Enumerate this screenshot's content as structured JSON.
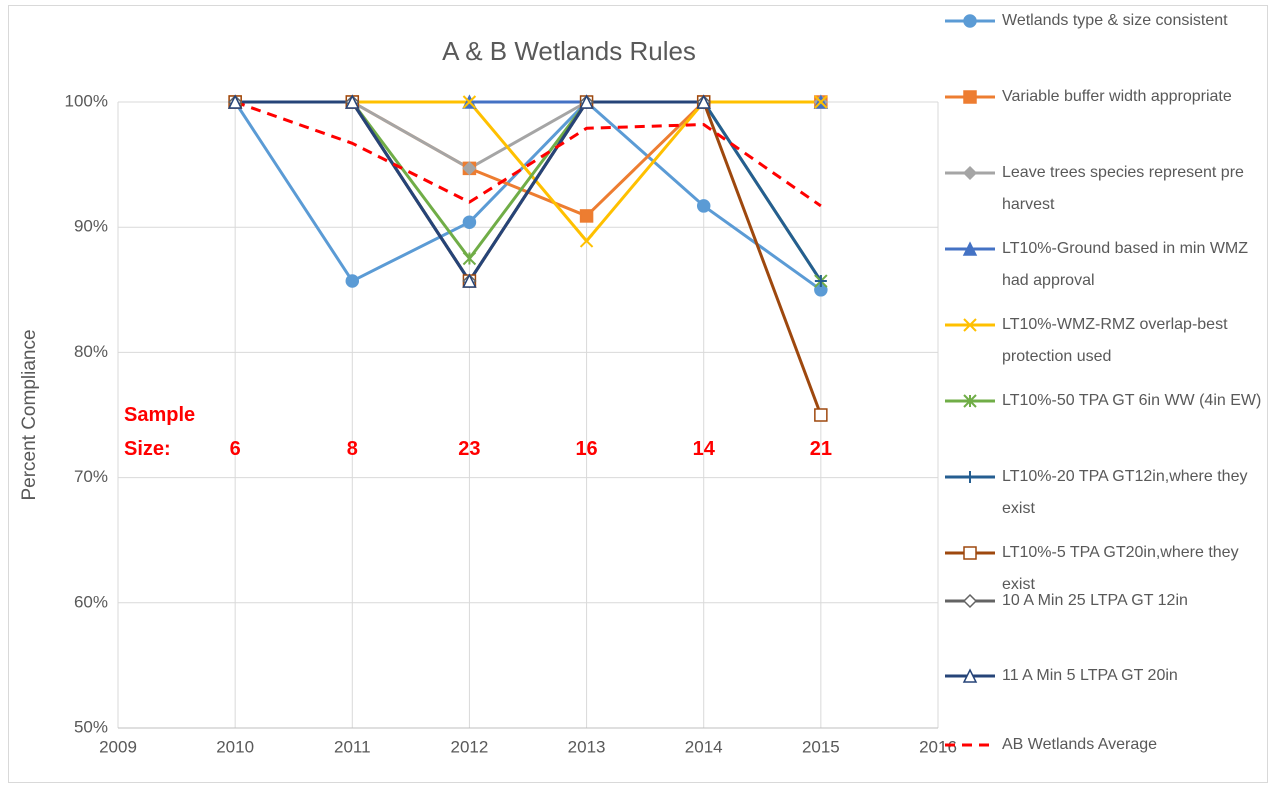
{
  "chart_data": {
    "type": "line",
    "title": "A & B Wetlands Rules",
    "y_label": "Percent Compliance",
    "x": [
      2010,
      2011,
      2012,
      2013,
      2014,
      2015
    ],
    "xlim": [
      2009,
      2016
    ],
    "xticks": [
      2009,
      2010,
      2011,
      2012,
      2013,
      2014,
      2015,
      2016
    ],
    "ylim": [
      50,
      100
    ],
    "yticks": [
      {
        "value": 50,
        "label": "50%"
      },
      {
        "value": 60,
        "label": "60%"
      },
      {
        "value": 70,
        "label": "70%"
      },
      {
        "value": 80,
        "label": "80%"
      },
      {
        "value": 90,
        "label": "90%"
      },
      {
        "value": 100,
        "label": "100%"
      }
    ],
    "grid": true,
    "legend": "right",
    "sample_size": {
      "label": "Sample Size:",
      "values": [
        6,
        8,
        23,
        16,
        14,
        21
      ],
      "color": "#ff0000"
    },
    "series": [
      {
        "name": "Wetlands type & size consistent",
        "color": "#5b9bd5",
        "marker": "circle",
        "values": [
          100,
          85.7,
          90.4,
          100,
          91.7,
          85
        ]
      },
      {
        "name": "Variable buffer width appropriate",
        "color": "#ed7d31",
        "marker": "square",
        "values": [
          100,
          100,
          94.7,
          90.9,
          100,
          100
        ]
      },
      {
        "name": "Leave trees species represent pre harvest",
        "color": "#a5a5a5",
        "marker": "diamond",
        "values": [
          100,
          100,
          94.7,
          100,
          100,
          100
        ]
      },
      {
        "name": "LT10%-Ground based in min WMZ had approval",
        "color": "#4472c4",
        "marker": "triangle",
        "values": [
          100,
          100,
          100,
          100,
          100,
          100
        ]
      },
      {
        "name": "LT10%-WMZ-RMZ overlap-best protection used",
        "color": "#ffc000",
        "marker": "x",
        "values": [
          100,
          100,
          100,
          88.9,
          100,
          100
        ]
      },
      {
        "name": "LT10%-50 TPA GT 6in WW (4in EW)",
        "color": "#70ad47",
        "marker": "star",
        "values": [
          100,
          100,
          87.5,
          100,
          100,
          85.7
        ]
      },
      {
        "name": "LT10%-20 TPA GT12in,where they exist",
        "color": "#255e91",
        "marker": "plus",
        "values": [
          100,
          100,
          85.7,
          100,
          100,
          85.7
        ]
      },
      {
        "name": "LT10%-5 TPA GT20in,where they exist",
        "color": "#9e480e",
        "marker": "square-open",
        "values": [
          100,
          100,
          85.7,
          100,
          100,
          75
        ]
      },
      {
        "name": "10 A Min 25 LTPA GT 12in",
        "color": "#636363",
        "marker": "diamond-open",
        "values": [
          100,
          100,
          85.7,
          100,
          100,
          null
        ]
      },
      {
        "name": "11 A Min  5 LTPA GT 20in",
        "color": "#264478",
        "marker": "triangle-open",
        "values": [
          100,
          100,
          85.7,
          100,
          100,
          null
        ]
      },
      {
        "name": "AB Wetlands Average",
        "color": "#ff0000",
        "marker": "none",
        "line_style": "dashed",
        "values": [
          100,
          96.7,
          92,
          97.9,
          98.2,
          91.7
        ]
      }
    ]
  }
}
